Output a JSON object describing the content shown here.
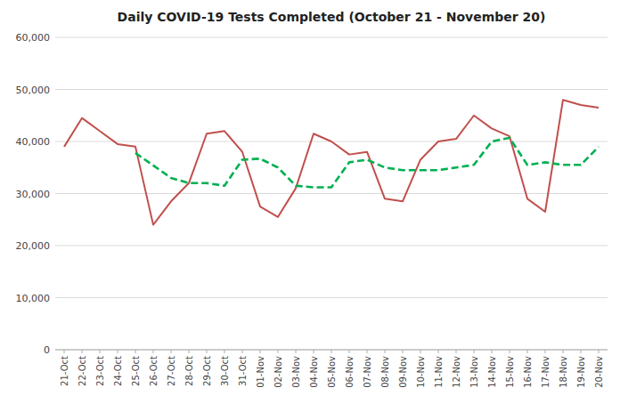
{
  "chart_data": {
    "type": "line",
    "title": "Daily COVID-19 Tests Completed (October 21 - November 20)",
    "categories": [
      "21-Oct",
      "22-Oct",
      "23-Oct",
      "24-Oct",
      "25-Oct",
      "26-Oct",
      "27-Oct",
      "28-Oct",
      "29-Oct",
      "30-Oct",
      "31-Oct",
      "01-Nov",
      "02-Nov",
      "03-Nov",
      "04-Nov",
      "05-Nov",
      "06-Nov",
      "07-Nov",
      "08-Nov",
      "09-Nov",
      "10-Nov",
      "11-Nov",
      "12-Nov",
      "13-Nov",
      "14-Nov",
      "15-Nov",
      "16-Nov",
      "17-Nov",
      "18-Nov",
      "19-Nov",
      "20-Nov"
    ],
    "series": [
      {
        "color": "#C0504D",
        "line_style": "solid",
        "values": [
          39000,
          44500,
          42000,
          39500,
          39000,
          24000,
          28500,
          32000,
          41500,
          42000,
          38000,
          27500,
          25500,
          31000,
          41500,
          40000,
          37500,
          38000,
          29000,
          28500,
          36500,
          40000,
          40500,
          45000,
          42500,
          41000,
          29000,
          26500,
          48000,
          47000,
          46500
        ]
      },
      {
        "color": "#00B050",
        "line_style": "dashed",
        "values": [
          null,
          null,
          null,
          null,
          37800,
          35400,
          33000,
          32000,
          32000,
          31500,
          36500,
          36700,
          35000,
          31500,
          31200,
          31200,
          36000,
          36500,
          35000,
          34500,
          34500,
          34500,
          35000,
          35500,
          40000,
          40700,
          35500,
          36000,
          35500,
          35500,
          39000
        ]
      }
    ],
    "ylim": [
      0,
      60000
    ],
    "yticks": [
      0,
      {
        "value": 10000,
        "label": "10,000"
      },
      {
        "value": 20000,
        "label": "20,000"
      },
      {
        "value": 30000,
        "label": "30,000"
      },
      {
        "value": 40000,
        "label": "40,000"
      },
      {
        "value": 50000,
        "label": "50,000"
      },
      {
        "value": 60000,
        "label": "60,000"
      }
    ],
    "grid": true
  }
}
